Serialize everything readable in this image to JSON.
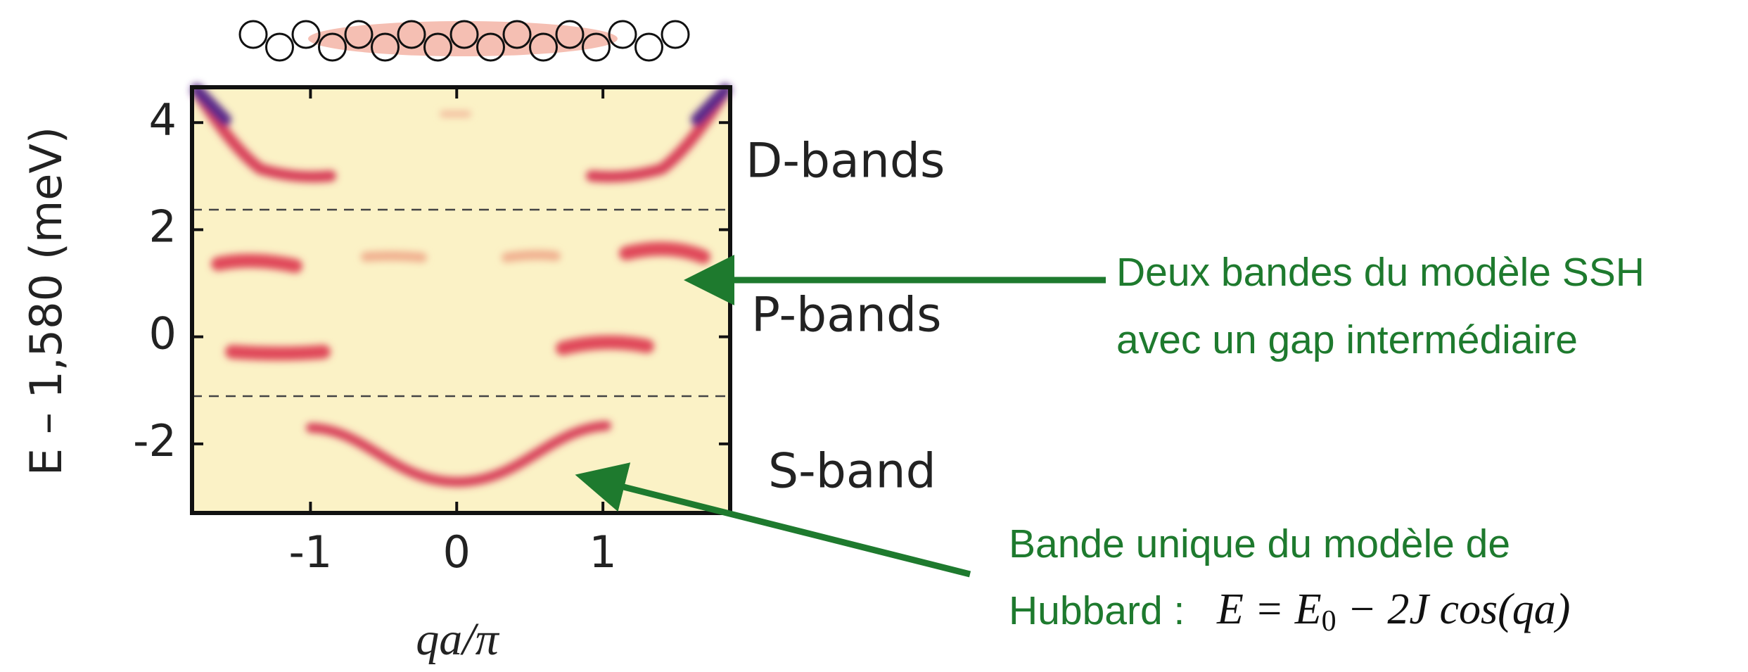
{
  "figure": {
    "y_label": "E – 1,580 (meV)",
    "x_label": "qa/π",
    "ylim": [
      -3.29,
      4.66
    ],
    "yticks": [
      -2,
      0,
      2,
      4
    ],
    "xlim": [
      -1.81,
      1.87
    ],
    "xticks": [
      -1,
      0,
      1
    ],
    "band_labels": [
      "D-bands",
      "P-bands",
      "S-band"
    ]
  },
  "annotations": [
    {
      "lines": [
        "Deux bandes du modèle SSH",
        "avec un gap intermédiaire"
      ]
    },
    {
      "lines": [
        "Bande unique du modèle de",
        "Hubbard :"
      ],
      "formula_parts": [
        "E = E",
        "0",
        " − 2J cos(qa)"
      ]
    }
  ]
}
